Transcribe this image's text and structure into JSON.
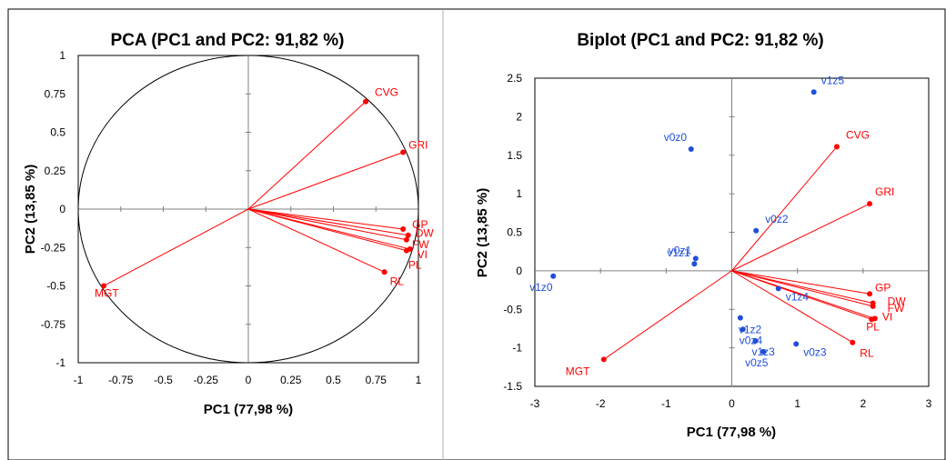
{
  "chart_data": [
    {
      "type": "scatter",
      "title": "PCA (PC1 and PC2: 91,82 %)",
      "xlabel": "PC1 (77,98 %)",
      "ylabel": "PC2 (13,85 %)",
      "xlim": [
        -1,
        1
      ],
      "ylim": [
        -1,
        1
      ],
      "x_ticks": [
        "-1",
        "-0.75",
        "-0.5",
        "-0.25",
        "0",
        "0.25",
        "0.5",
        "0.75",
        "1"
      ],
      "y_ticks": [
        "1",
        "0.75",
        "0.5",
        "0.25",
        "0",
        "-0.25",
        "-0.5",
        "-0.75",
        "-1"
      ],
      "correlation_circle": true,
      "colors": {
        "variables": "#ff0000",
        "axes": "#808080",
        "circle": "#000000"
      },
      "variables": [
        {
          "label": "CVG",
          "x": 0.69,
          "y": 0.7
        },
        {
          "label": "GRI",
          "x": 0.91,
          "y": 0.37
        },
        {
          "label": "GP",
          "x": 0.91,
          "y": -0.13
        },
        {
          "label": "DW",
          "x": 0.94,
          "y": -0.17
        },
        {
          "label": "FW",
          "x": 0.93,
          "y": -0.2
        },
        {
          "label": "VI",
          "x": 0.95,
          "y": -0.26
        },
        {
          "label": "PL",
          "x": 0.93,
          "y": -0.27
        },
        {
          "label": "RL",
          "x": 0.8,
          "y": -0.41
        },
        {
          "label": "MGT",
          "x": -0.85,
          "y": -0.5
        }
      ]
    },
    {
      "type": "scatter",
      "title": "Biplot (PC1 and PC2: 91,82 %)",
      "xlabel": "PC1 (77,98 %)",
      "ylabel": "PC2 (13,85 %)",
      "xlim": [
        -3,
        3
      ],
      "ylim": [
        -1.5,
        2.5
      ],
      "x_ticks": [
        "-3",
        "-2",
        "-1",
        "0",
        "1",
        "2",
        "3"
      ],
      "y_ticks": [
        "2.5",
        "2",
        "1.5",
        "1",
        "0.5",
        "0",
        "-0.5",
        "-1",
        "-1.5"
      ],
      "colors": {
        "variables": "#ff0000",
        "observations": "#1f4fd8",
        "axes": "#808080"
      },
      "observations": [
        {
          "label": "v1z5",
          "x": 1.25,
          "y": 2.32
        },
        {
          "label": "v0z0",
          "x": -0.62,
          "y": 1.58
        },
        {
          "label": "v0z2",
          "x": 0.37,
          "y": 0.52
        },
        {
          "label": "v0z1",
          "x": -0.55,
          "y": 0.16
        },
        {
          "label": "v1z1",
          "x": -0.57,
          "y": 0.09
        },
        {
          "label": "v1z0",
          "x": -2.72,
          "y": -0.07
        },
        {
          "label": "v1z4",
          "x": 0.71,
          "y": -0.23
        },
        {
          "label": "v1z2",
          "x": 0.13,
          "y": -0.61
        },
        {
          "label": "v0z4",
          "x": 0.17,
          "y": -0.76
        },
        {
          "label": "v1z3",
          "x": 0.36,
          "y": -0.91
        },
        {
          "label": "v0z3",
          "x": 0.98,
          "y": -0.95
        },
        {
          "label": "v0z5",
          "x": 0.48,
          "y": -1.05
        }
      ],
      "variables": [
        {
          "label": "CVG",
          "x": 1.6,
          "y": 1.61
        },
        {
          "label": "GRI",
          "x": 2.1,
          "y": 0.87
        },
        {
          "label": "GP",
          "x": 2.1,
          "y": -0.3
        },
        {
          "label": "DW",
          "x": 2.15,
          "y": -0.42
        },
        {
          "label": "FW",
          "x": 2.15,
          "y": -0.46
        },
        {
          "label": "VI",
          "x": 2.18,
          "y": -0.62
        },
        {
          "label": "PL",
          "x": 2.13,
          "y": -0.63
        },
        {
          "label": "RL",
          "x": 1.84,
          "y": -0.93
        },
        {
          "label": "MGT",
          "x": -1.95,
          "y": -1.15
        }
      ]
    }
  ]
}
